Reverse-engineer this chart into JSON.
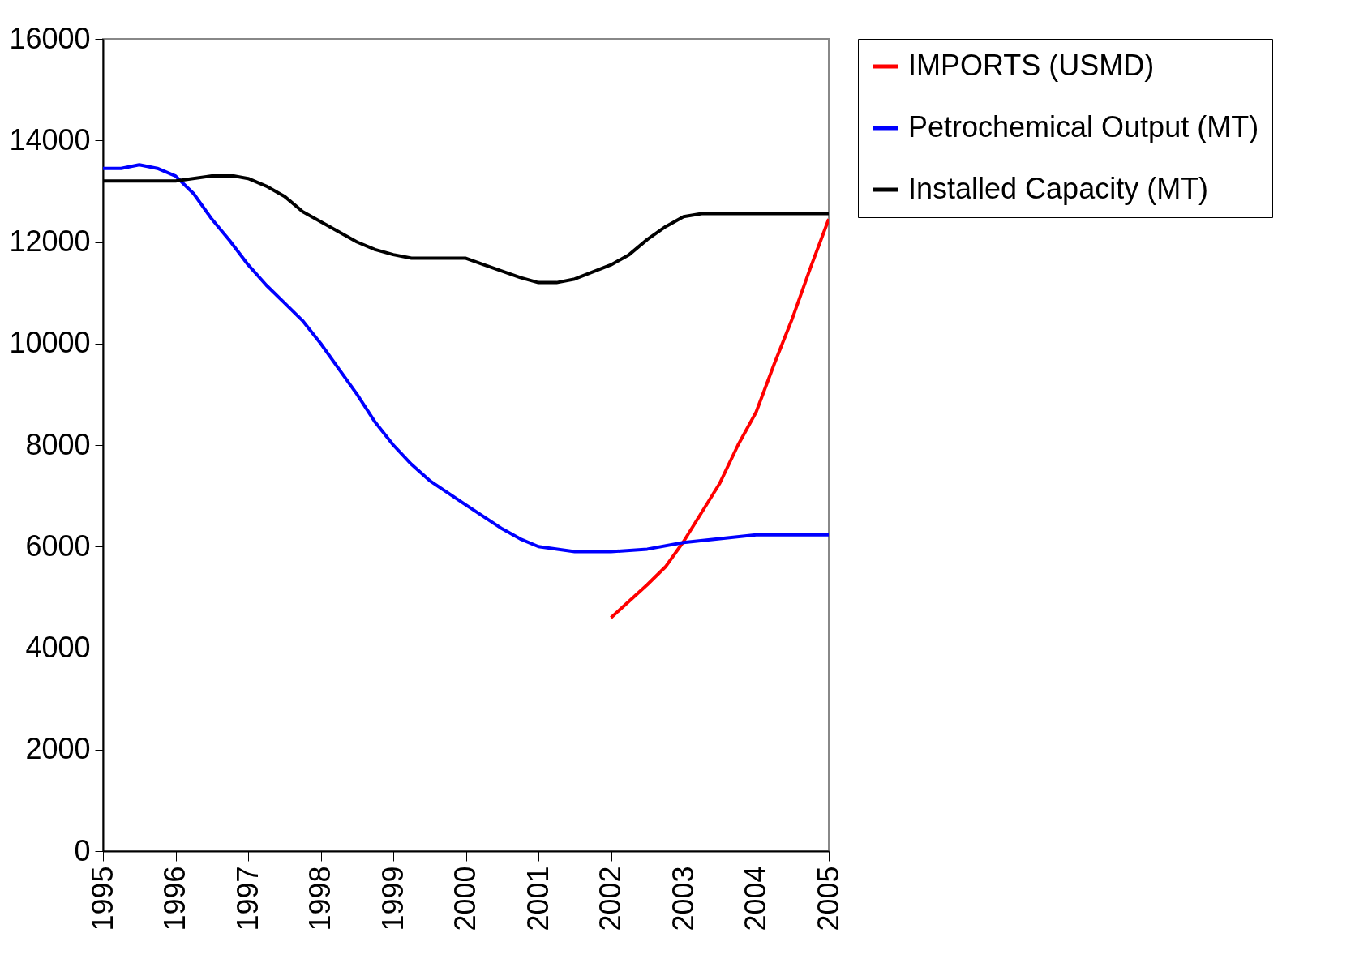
{
  "chart_data": {
    "type": "line",
    "xlim": [
      1995,
      2005
    ],
    "xticks": [
      1995,
      1996,
      1997,
      1998,
      1999,
      2000,
      2001,
      2002,
      2003,
      2004,
      2005
    ],
    "ylim": [
      0,
      16000
    ],
    "yticks": [
      0,
      2000,
      4000,
      6000,
      8000,
      10000,
      12000,
      14000,
      16000
    ],
    "grid": false,
    "legend": "right",
    "marker": "none",
    "line_style": "solid",
    "series": [
      {
        "name": "IMPORTS (USMD)",
        "color": "#ff0000",
        "x": [
          2002,
          2002.5,
          2002.75,
          2003,
          2003.5,
          2003.75,
          2004,
          2004.25,
          2004.5,
          2004.75,
          2005
        ],
        "values": [
          4600,
          5250,
          5600,
          6100,
          7250,
          8000,
          8650,
          9600,
          10500,
          11500,
          12450
        ]
      },
      {
        "name": "Petrochemical Output (MT)",
        "color": "#0000ff",
        "x": [
          1995,
          1995.25,
          1995.5,
          1995.75,
          1996,
          1996.25,
          1996.5,
          1996.75,
          1997,
          1997.25,
          1997.5,
          1997.75,
          1998,
          1998.25,
          1998.5,
          1998.75,
          1999,
          1999.25,
          1999.5,
          2000,
          2000.5,
          2000.75,
          2001,
          2001.5,
          2002,
          2002.5,
          2003,
          2004,
          2005
        ],
        "values": [
          13450,
          13450,
          13520,
          13450,
          13300,
          12950,
          12450,
          12020,
          11550,
          11150,
          10800,
          10450,
          10000,
          9500,
          9000,
          8450,
          8000,
          7620,
          7300,
          6820,
          6350,
          6150,
          6000,
          5900,
          5900,
          5950,
          6080,
          6230,
          6230
        ]
      },
      {
        "name": "Installed Capacity (MT)",
        "color": "#000000",
        "x": [
          1995,
          1996,
          1996.5,
          1996.8,
          1997,
          1997.25,
          1997.5,
          1997.75,
          1998,
          1998.5,
          1998.75,
          1999,
          1999.25,
          2000,
          2000.25,
          2000.75,
          2001,
          2001.25,
          2001.5,
          2002,
          2002.25,
          2002.5,
          2002.75,
          2003,
          2003.25,
          2005
        ],
        "values": [
          13200,
          13200,
          13300,
          13300,
          13250,
          13100,
          12900,
          12600,
          12400,
          12000,
          11850,
          11750,
          11680,
          11680,
          11550,
          11300,
          11200,
          11200,
          11270,
          11550,
          11750,
          12050,
          12300,
          12500,
          12560,
          12560
        ]
      }
    ]
  }
}
